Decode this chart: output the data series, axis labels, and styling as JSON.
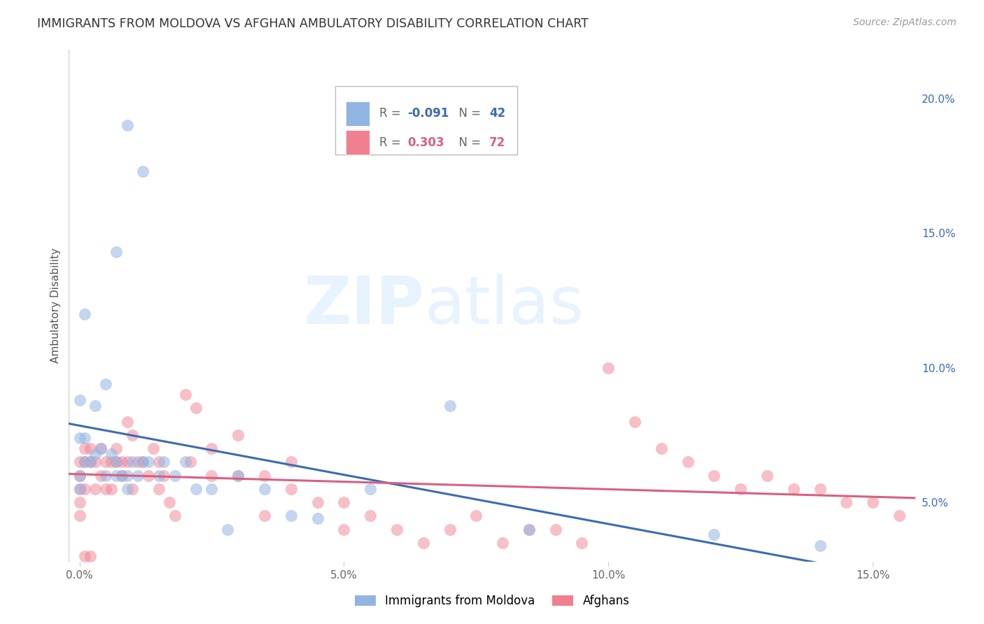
{
  "title": "IMMIGRANTS FROM MOLDOVA VS AFGHAN AMBULATORY DISABILITY CORRELATION CHART",
  "source": "Source: ZipAtlas.com",
  "ylabel": "Ambulatory Disability",
  "xlim": [
    -0.002,
    0.158
  ],
  "ylim": [
    0.028,
    0.218
  ],
  "xticks": [
    0.0,
    0.05,
    0.1,
    0.15
  ],
  "xticklabels": [
    "0.0%",
    "5.0%",
    "10.0%",
    "15.0%"
  ],
  "yticks": [
    0.05,
    0.1,
    0.15,
    0.2
  ],
  "yticklabels": [
    "5.0%",
    "10.0%",
    "15.0%",
    "20.0%"
  ],
  "blue_R": -0.091,
  "blue_N": 42,
  "pink_R": 0.303,
  "pink_N": 72,
  "blue_color": "#92b4e3",
  "pink_color": "#f08090",
  "blue_line_color": "#3a6bb5",
  "pink_line_color": "#d96080",
  "legend_label_blue": "Immigrants from Moldova",
  "legend_label_pink": "Afghans",
  "watermark_zip": "ZIP",
  "watermark_atlas": "atlas",
  "background_color": "#ffffff",
  "grid_color": "#cccccc",
  "blue_x": [
    0.009,
    0.012,
    0.007,
    0.001,
    0.0,
    0.0,
    0.001,
    0.001,
    0.002,
    0.003,
    0.003,
    0.004,
    0.005,
    0.005,
    0.006,
    0.007,
    0.007,
    0.008,
    0.009,
    0.009,
    0.01,
    0.011,
    0.012,
    0.013,
    0.015,
    0.016,
    0.018,
    0.02,
    0.022,
    0.025,
    0.028,
    0.03,
    0.035,
    0.04,
    0.055,
    0.07,
    0.085,
    0.12,
    0.14,
    0.045,
    0.0,
    0.0
  ],
  "blue_y": [
    0.19,
    0.173,
    0.143,
    0.12,
    0.088,
    0.074,
    0.074,
    0.065,
    0.065,
    0.086,
    0.068,
    0.07,
    0.094,
    0.06,
    0.068,
    0.06,
    0.065,
    0.06,
    0.055,
    0.06,
    0.065,
    0.06,
    0.065,
    0.065,
    0.06,
    0.065,
    0.06,
    0.065,
    0.055,
    0.055,
    0.04,
    0.06,
    0.055,
    0.045,
    0.055,
    0.086,
    0.04,
    0.038,
    0.034,
    0.044,
    0.06,
    0.055
  ],
  "pink_x": [
    0.0,
    0.0,
    0.0,
    0.0,
    0.0,
    0.001,
    0.001,
    0.001,
    0.002,
    0.002,
    0.003,
    0.003,
    0.004,
    0.004,
    0.005,
    0.005,
    0.006,
    0.006,
    0.007,
    0.007,
    0.008,
    0.008,
    0.009,
    0.009,
    0.01,
    0.01,
    0.011,
    0.012,
    0.013,
    0.014,
    0.015,
    0.015,
    0.016,
    0.017,
    0.018,
    0.02,
    0.021,
    0.022,
    0.025,
    0.025,
    0.03,
    0.03,
    0.035,
    0.035,
    0.04,
    0.04,
    0.045,
    0.05,
    0.05,
    0.055,
    0.06,
    0.065,
    0.07,
    0.075,
    0.08,
    0.085,
    0.09,
    0.095,
    0.1,
    0.105,
    0.11,
    0.115,
    0.12,
    0.125,
    0.13,
    0.135,
    0.14,
    0.145,
    0.15,
    0.155,
    0.001,
    0.002
  ],
  "pink_y": [
    0.065,
    0.06,
    0.055,
    0.05,
    0.045,
    0.07,
    0.065,
    0.055,
    0.07,
    0.065,
    0.065,
    0.055,
    0.07,
    0.06,
    0.065,
    0.055,
    0.065,
    0.055,
    0.07,
    0.065,
    0.065,
    0.06,
    0.08,
    0.065,
    0.075,
    0.055,
    0.065,
    0.065,
    0.06,
    0.07,
    0.065,
    0.055,
    0.06,
    0.05,
    0.045,
    0.09,
    0.065,
    0.085,
    0.07,
    0.06,
    0.075,
    0.06,
    0.06,
    0.045,
    0.065,
    0.055,
    0.05,
    0.05,
    0.04,
    0.045,
    0.04,
    0.035,
    0.04,
    0.045,
    0.035,
    0.04,
    0.04,
    0.035,
    0.1,
    0.08,
    0.07,
    0.065,
    0.06,
    0.055,
    0.06,
    0.055,
    0.055,
    0.05,
    0.05,
    0.045,
    0.03,
    0.03
  ]
}
